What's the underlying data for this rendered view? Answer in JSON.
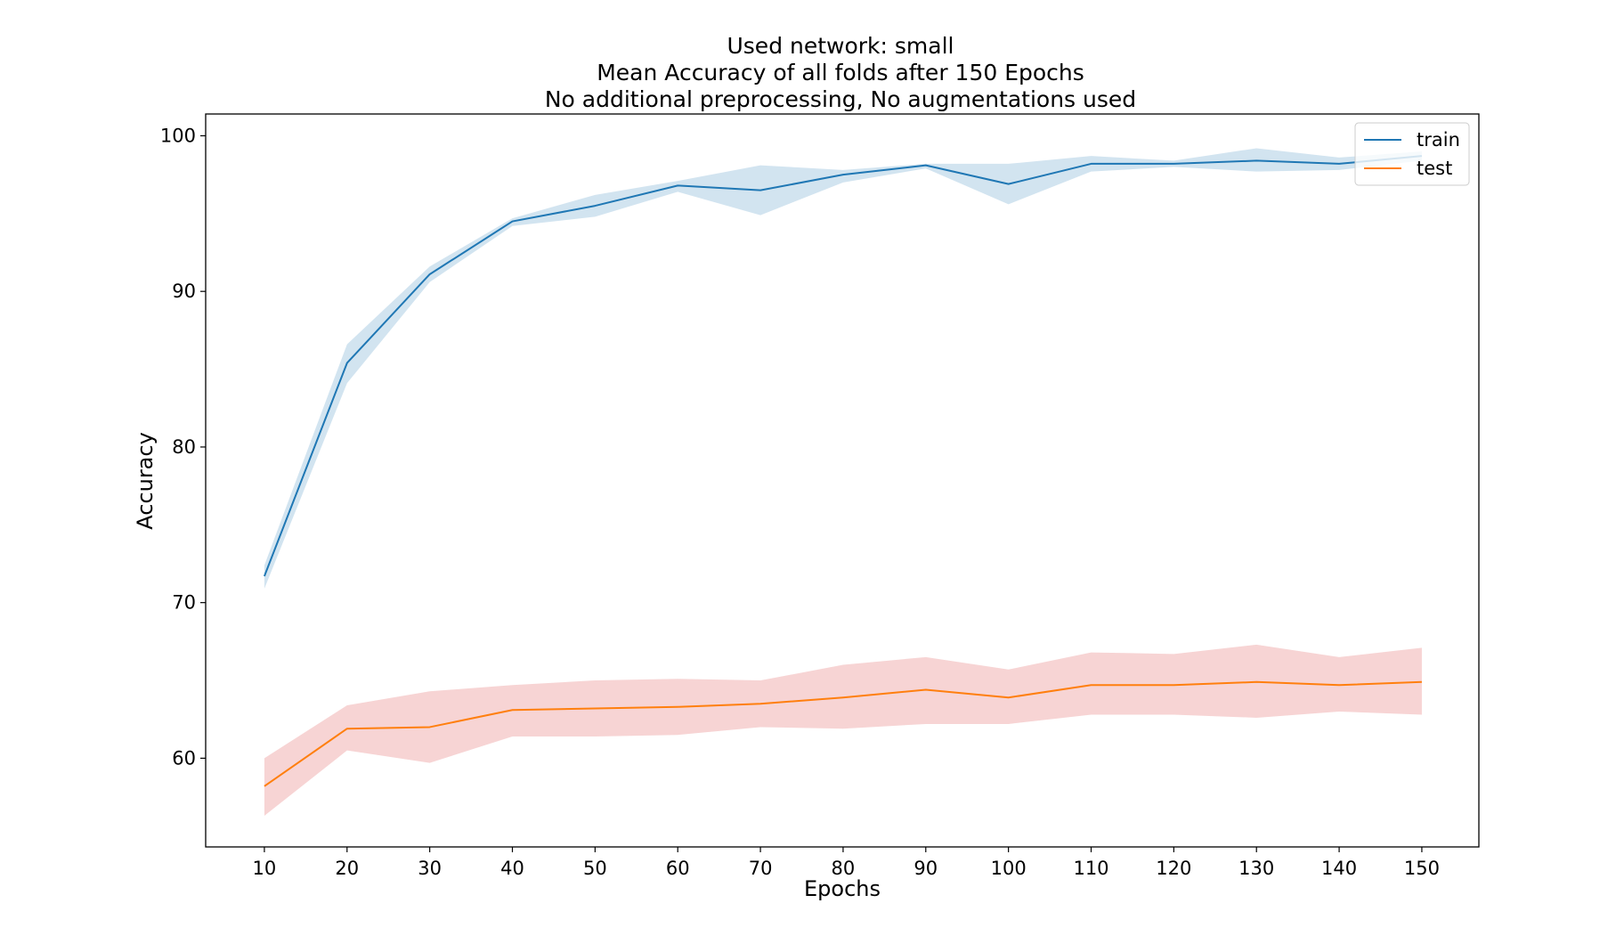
{
  "chart_data": {
    "type": "line",
    "title": [
      "Used network: small",
      "Mean Accuracy of all folds after 150 Epochs",
      "No additional preprocessing, No augmentations used"
    ],
    "xlabel": "Epochs",
    "ylabel": "Accuracy",
    "x": [
      10,
      20,
      30,
      40,
      50,
      60,
      70,
      80,
      90,
      100,
      110,
      120,
      130,
      140,
      150
    ],
    "xticks": [
      10,
      20,
      30,
      40,
      50,
      60,
      70,
      80,
      90,
      100,
      110,
      120,
      130,
      140,
      150
    ],
    "yticks": [
      60,
      70,
      80,
      90,
      100
    ],
    "xlim": [
      2.9,
      156.9
    ],
    "ylim": [
      54.3,
      101.4
    ],
    "grid": false,
    "legend_position": "top-right",
    "series": [
      {
        "name": "train",
        "color": "#1f77b4",
        "band_color": "#1f77b4",
        "values": [
          71.7,
          85.4,
          91.1,
          94.5,
          95.5,
          96.8,
          96.5,
          97.5,
          98.1,
          96.9,
          98.2,
          98.2,
          98.4,
          98.2,
          98.7
        ],
        "lower": [
          70.9,
          84.1,
          90.6,
          94.2,
          94.8,
          96.4,
          94.9,
          97.0,
          97.9,
          95.6,
          97.7,
          98.0,
          97.7,
          97.8,
          98.4
        ],
        "upper": [
          72.4,
          86.6,
          91.6,
          94.7,
          96.2,
          97.1,
          98.1,
          97.8,
          98.2,
          98.2,
          98.7,
          98.4,
          99.2,
          98.6,
          99.0
        ]
      },
      {
        "name": "test",
        "color": "#ff7f0e",
        "band_color": "#d62728",
        "values": [
          58.2,
          61.9,
          62.0,
          63.1,
          63.2,
          63.3,
          63.5,
          63.9,
          64.4,
          63.9,
          64.7,
          64.7,
          64.9,
          64.7,
          64.9
        ],
        "lower": [
          56.3,
          60.5,
          59.7,
          61.4,
          61.4,
          61.5,
          62.0,
          61.9,
          62.2,
          62.2,
          62.8,
          62.8,
          62.6,
          63.0,
          62.8
        ],
        "upper": [
          60.0,
          63.4,
          64.3,
          64.7,
          65.0,
          65.1,
          65.0,
          66.0,
          66.5,
          65.7,
          66.8,
          66.7,
          67.3,
          66.5,
          67.1
        ]
      }
    ]
  }
}
